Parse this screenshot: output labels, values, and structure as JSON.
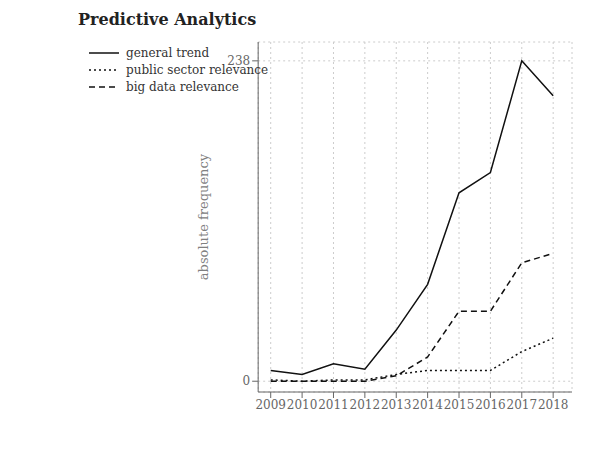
{
  "chart_data": {
    "type": "line",
    "title": "Predictive Analytics",
    "ylabel": "absolute frequency",
    "x": [
      2009,
      2010,
      2011,
      2012,
      2013,
      2014,
      2015,
      2016,
      2017,
      2018
    ],
    "series": [
      {
        "name": "general trend",
        "color": "#111111",
        "line_style": "solid",
        "values": [
          8,
          5,
          13,
          9,
          38,
          72,
          140,
          155,
          238,
          212
        ]
      },
      {
        "name": "public sector relevance",
        "color": "#111111",
        "line_style": "dotted",
        "values": [
          1,
          0,
          1,
          1,
          5,
          8,
          8,
          8,
          22,
          32
        ]
      },
      {
        "name": "big data relevance",
        "color": "#111111",
        "line_style": "dashed",
        "values": [
          0,
          0,
          0,
          0,
          4,
          18,
          52,
          52,
          88,
          95
        ]
      }
    ],
    "xlim": [
      2008.6,
      2018.6
    ],
    "xticks": [
      2009,
      2010,
      2011,
      2012,
      2013,
      2014,
      2015,
      2016,
      2017,
      2018
    ],
    "ylim": [
      -8,
      252
    ],
    "yticks": [
      0,
      238
    ],
    "grid": true,
    "legend": "upper left"
  }
}
